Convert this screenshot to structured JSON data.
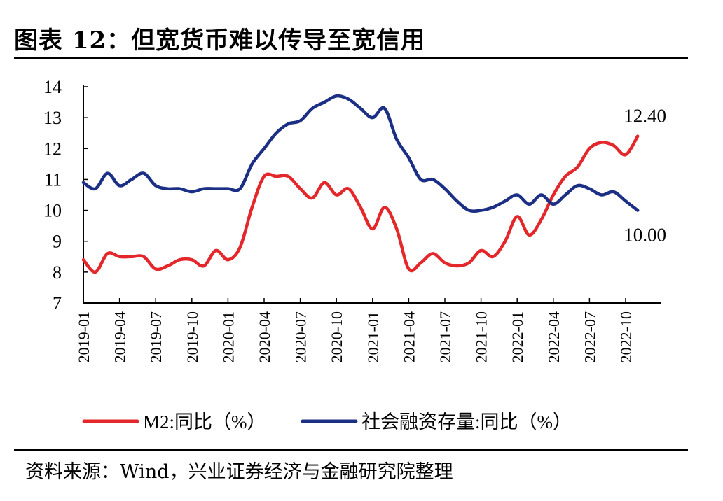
{
  "header": {
    "title": "图表 12：但宽货币难以传导至宽信用"
  },
  "footer": {
    "source": "资料来源：Wind，兴业证券经济与金融研究院整理"
  },
  "chart_data": {
    "type": "line",
    "title": "但宽货币难以传导至宽信用",
    "xlabel": "",
    "ylabel": "",
    "ylim": [
      7,
      14
    ],
    "yticks": [
      7,
      8,
      9,
      10,
      11,
      12,
      13,
      14
    ],
    "grid": false,
    "legend": "bottom",
    "x": [
      "2019-01",
      "2019-02",
      "2019-03",
      "2019-04",
      "2019-05",
      "2019-06",
      "2019-07",
      "2019-08",
      "2019-09",
      "2019-10",
      "2019-11",
      "2019-12",
      "2020-01",
      "2020-02",
      "2020-03",
      "2020-04",
      "2020-05",
      "2020-06",
      "2020-07",
      "2020-08",
      "2020-09",
      "2020-10",
      "2020-11",
      "2020-12",
      "2021-01",
      "2021-02",
      "2021-03",
      "2021-04",
      "2021-05",
      "2021-06",
      "2021-07",
      "2021-08",
      "2021-09",
      "2021-10",
      "2021-11",
      "2021-12",
      "2022-01",
      "2022-02",
      "2022-03",
      "2022-04",
      "2022-05",
      "2022-06",
      "2022-07",
      "2022-08",
      "2022-09",
      "2022-10",
      "2022-11"
    ],
    "xtick_labels": [
      "2019-01",
      "2019-04",
      "2019-07",
      "2019-10",
      "2020-01",
      "2020-04",
      "2020-07",
      "2020-10",
      "2021-01",
      "2021-04",
      "2021-07",
      "2021-10",
      "2022-01",
      "2022-04",
      "2022-07",
      "2022-10"
    ],
    "series": [
      {
        "name": "M2:同比（%）",
        "color": "#e3272b",
        "values": [
          8.4,
          8.0,
          8.6,
          8.5,
          8.5,
          8.5,
          8.1,
          8.2,
          8.4,
          8.4,
          8.2,
          8.7,
          8.4,
          8.8,
          10.1,
          11.1,
          11.1,
          11.1,
          10.7,
          10.4,
          10.9,
          10.5,
          10.7,
          10.1,
          9.4,
          10.1,
          9.4,
          8.1,
          8.3,
          8.6,
          8.3,
          8.2,
          8.3,
          8.7,
          8.5,
          9.0,
          9.8,
          9.2,
          9.7,
          10.5,
          11.1,
          11.4,
          12.0,
          12.2,
          12.1,
          11.8,
          12.4
        ]
      },
      {
        "name": "社会融资存量:同比（%）",
        "color": "#1b2f84",
        "values": [
          10.9,
          10.7,
          11.2,
          10.8,
          11.0,
          11.2,
          10.8,
          10.7,
          10.7,
          10.6,
          10.7,
          10.7,
          10.7,
          10.7,
          11.5,
          12.0,
          12.5,
          12.8,
          12.9,
          13.3,
          13.5,
          13.7,
          13.6,
          13.3,
          13.0,
          13.3,
          12.3,
          11.7,
          11.0,
          11.0,
          10.7,
          10.3,
          10.0,
          10.0,
          10.1,
          10.3,
          10.5,
          10.2,
          10.5,
          10.2,
          10.5,
          10.8,
          10.7,
          10.5,
          10.6,
          10.3,
          10.0
        ]
      }
    ],
    "annotations": [
      {
        "text": "12.40",
        "series": 0,
        "index": 46
      },
      {
        "text": "10.00",
        "series": 1,
        "index": 46
      }
    ],
    "legend_labels": {
      "m2": "M2:同比（%）",
      "social": "社会融资存量:同比（%）"
    }
  }
}
